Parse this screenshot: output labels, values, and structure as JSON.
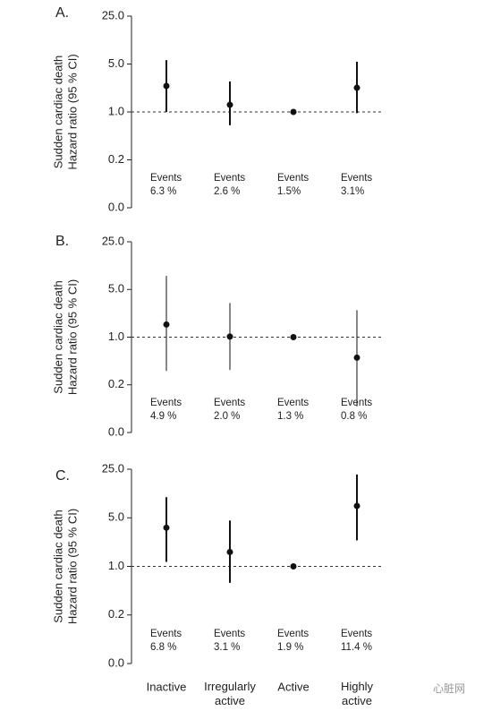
{
  "chart_data": [
    {
      "type": "forest",
      "title": "A.",
      "y_label": [
        "Sudden cardiac death",
        "Hazard ratio (95 % CI)"
      ],
      "log_y": true,
      "ylim": [
        0.04,
        25
      ],
      "yticks": [
        {
          "value": 0.04,
          "label": "0.0"
        },
        0.2,
        {
          "value": 1,
          "label": "1.0"
        },
        {
          "value": 5,
          "label": "5.0"
        },
        {
          "value": 25,
          "label": "25.0"
        }
      ],
      "reference_line": 1,
      "line_width": 2,
      "color": "#111111",
      "values": [
        2.39,
        1.27,
        1,
        2.25
      ],
      "lower": [
        1.0,
        0.64,
        null,
        0.96
      ],
      "upper": [
        5.7,
        2.78,
        null,
        5.4
      ],
      "events_label": "Events",
      "events": [
        "6.3 %",
        "2.6 %",
        "1.5%",
        "3.1%"
      ]
    },
    {
      "type": "forest",
      "title": "B.",
      "y_label": [
        "Sudden cardiac death",
        "Hazard ratio (95 % CI)"
      ],
      "log_y": true,
      "ylim": [
        0.04,
        25
      ],
      "yticks": [
        {
          "value": 0.04,
          "label": "0.0"
        },
        0.2,
        {
          "value": 1,
          "label": "1.0"
        },
        {
          "value": 5,
          "label": "5.0"
        },
        {
          "value": 25,
          "label": "25.0"
        }
      ],
      "reference_line": 1,
      "line_width": 1,
      "color": "#111111",
      "values": [
        1.53,
        1.02,
        1,
        0.5
      ],
      "lower": [
        0.32,
        0.33,
        null,
        0.097
      ],
      "upper": [
        7.9,
        3.17,
        null,
        2.49
      ],
      "events_label": "Events",
      "events": [
        "4.9 %",
        "2.0 %",
        "1.3 %",
        "0.8 %"
      ]
    },
    {
      "type": "forest",
      "title": "C.",
      "y_label": [
        "Sudden cardiac death",
        "Hazard ratio (95 % CI)"
      ],
      "log_y": true,
      "ylim": [
        0.04,
        25
      ],
      "yticks": [
        {
          "value": 0.04,
          "label": "0.0"
        },
        0.2,
        {
          "value": 1,
          "label": "1.0"
        },
        {
          "value": 5,
          "label": "5.0"
        },
        {
          "value": 25,
          "label": "25.0"
        }
      ],
      "reference_line": 1,
      "line_width": 2,
      "color": "#111111",
      "categories": [
        "Inactive",
        "Irregularly active",
        "Active",
        "Highly active"
      ],
      "values": [
        3.6,
        1.61,
        1,
        7.4
      ],
      "lower": [
        1.16,
        0.58,
        null,
        2.37
      ],
      "upper": [
        9.9,
        4.57,
        null,
        21
      ],
      "events_label": "Events",
      "events": [
        "6.8 %",
        "3.1 %",
        "1.9 %",
        "11.4 %"
      ]
    }
  ],
  "watermark": "心脏网"
}
